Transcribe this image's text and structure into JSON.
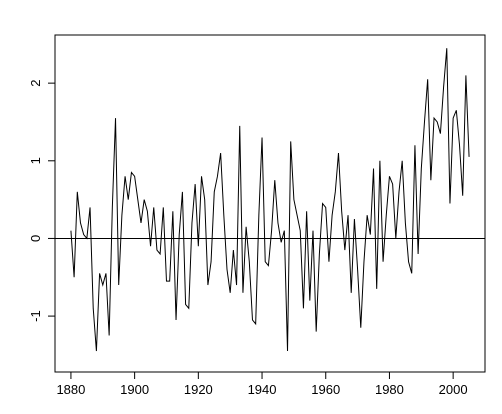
{
  "chart_data": {
    "type": "line",
    "color": "#000000",
    "x": [
      1880,
      1881,
      1882,
      1883,
      1884,
      1885,
      1886,
      1887,
      1888,
      1889,
      1890,
      1891,
      1892,
      1893,
      1894,
      1895,
      1896,
      1897,
      1898,
      1899,
      1900,
      1901,
      1902,
      1903,
      1904,
      1905,
      1906,
      1907,
      1908,
      1909,
      1910,
      1911,
      1912,
      1913,
      1914,
      1915,
      1916,
      1917,
      1918,
      1919,
      1920,
      1921,
      1922,
      1923,
      1924,
      1925,
      1926,
      1927,
      1928,
      1929,
      1930,
      1931,
      1932,
      1933,
      1934,
      1935,
      1936,
      1937,
      1938,
      1939,
      1940,
      1941,
      1942,
      1943,
      1944,
      1945,
      1946,
      1947,
      1948,
      1949,
      1950,
      1951,
      1952,
      1953,
      1954,
      1955,
      1956,
      1957,
      1958,
      1959,
      1960,
      1961,
      1962,
      1963,
      1964,
      1965,
      1966,
      1967,
      1968,
      1969,
      1970,
      1971,
      1972,
      1973,
      1974,
      1975,
      1976,
      1977,
      1978,
      1979,
      1980,
      1981,
      1982,
      1983,
      1984,
      1985,
      1986,
      1987,
      1988,
      1989,
      1990,
      1991,
      1992,
      1993,
      1994,
      1995,
      1996,
      1997,
      1998,
      1999,
      2000,
      2001,
      2002,
      2003,
      2004,
      2005
    ],
    "values": [
      0.1,
      -0.5,
      0.6,
      0.2,
      0.05,
      0.0,
      0.4,
      -0.9,
      -1.45,
      -0.45,
      -0.6,
      -0.45,
      -1.25,
      0.4,
      1.55,
      -0.6,
      0.3,
      0.8,
      0.5,
      0.85,
      0.8,
      0.5,
      0.2,
      0.5,
      0.35,
      -0.1,
      0.4,
      -0.15,
      -0.2,
      0.4,
      -0.55,
      -0.55,
      0.35,
      -1.05,
      0.05,
      0.6,
      -0.85,
      -0.9,
      0.2,
      0.7,
      -0.1,
      0.8,
      0.5,
      -0.6,
      -0.3,
      0.6,
      0.8,
      1.1,
      0.3,
      -0.4,
      -0.7,
      -0.15,
      -0.6,
      1.45,
      -0.7,
      0.15,
      -0.3,
      -1.05,
      -1.1,
      0.3,
      1.3,
      -0.3,
      -0.35,
      0.1,
      0.75,
      0.2,
      -0.05,
      0.1,
      -1.45,
      1.25,
      0.5,
      0.3,
      0.1,
      -0.9,
      0.35,
      -0.8,
      0.1,
      -1.2,
      -0.2,
      0.45,
      0.4,
      -0.3,
      0.3,
      0.6,
      1.1,
      0.35,
      -0.15,
      0.3,
      -0.7,
      0.25,
      -0.4,
      -1.15,
      -0.3,
      0.3,
      0.05,
      0.9,
      -0.65,
      1.0,
      -0.3,
      0.3,
      0.8,
      0.7,
      0.0,
      0.6,
      1.0,
      0.2,
      -0.3,
      -0.45,
      1.2,
      -0.2,
      0.9,
      1.5,
      2.05,
      0.75,
      1.55,
      1.5,
      1.35,
      1.95,
      2.45,
      0.45,
      1.55,
      1.65,
      1.2,
      0.55,
      2.1,
      1.05
    ],
    "xlim": [
      1875,
      2010
    ],
    "xticks": [
      1880,
      1900,
      1920,
      1940,
      1960,
      1980,
      2000
    ],
    "ylim": [
      -1.72,
      2.62
    ],
    "yticks": [
      -1,
      0,
      1,
      2
    ],
    "hline": 0
  }
}
